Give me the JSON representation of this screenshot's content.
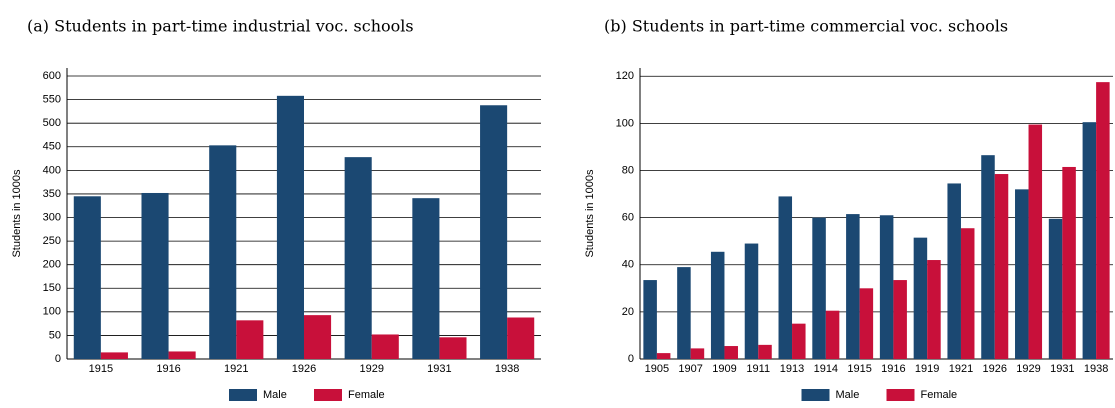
{
  "chart_data": [
    {
      "type": "bar",
      "title": "(a) Students in part-time industrial voc. schools",
      "y_label": "Students in 1000s",
      "categories": [
        "1915",
        "1916",
        "1921",
        "1926",
        "1929",
        "1931",
        "1938"
      ],
      "series": [
        {
          "name": "Male",
          "color": "#1b4872",
          "values": [
            345,
            352,
            453,
            558,
            428,
            341,
            538
          ]
        },
        {
          "name": "Female",
          "color": "#c8103a",
          "values": [
            14,
            16,
            82,
            93,
            52,
            46,
            88
          ]
        }
      ],
      "ylim": [
        0,
        617
      ],
      "yticks": [
        0,
        50,
        100,
        150,
        200,
        250,
        300,
        350,
        400,
        450,
        500,
        550,
        600
      ],
      "grid": true,
      "legend": "bottom"
    },
    {
      "type": "bar",
      "title": "(b) Students in part-time commercial voc. schools",
      "y_label": "Students in 1000s",
      "categories": [
        "1905",
        "1907",
        "1909",
        "1911",
        "1913",
        "1914",
        "1915",
        "1916",
        "1919",
        "1921",
        "1926",
        "1929",
        "1931",
        "1938"
      ],
      "series": [
        {
          "name": "Male",
          "color": "#1b4872",
          "values": [
            33.5,
            39,
            45.5,
            49,
            69,
            60,
            61.5,
            61,
            51.5,
            74.5,
            86.5,
            72,
            59.5,
            100.5
          ]
        },
        {
          "name": "Female",
          "color": "#c8103a",
          "values": [
            2.5,
            4.5,
            5.5,
            6,
            15,
            20.5,
            30,
            33.5,
            42,
            55.5,
            78.5,
            99.5,
            81.5,
            117.5
          ]
        }
      ],
      "ylim": [
        0,
        123.5
      ],
      "yticks": [
        0,
        20,
        40,
        60,
        80,
        100,
        120
      ],
      "grid": true,
      "legend": "bottom"
    }
  ]
}
